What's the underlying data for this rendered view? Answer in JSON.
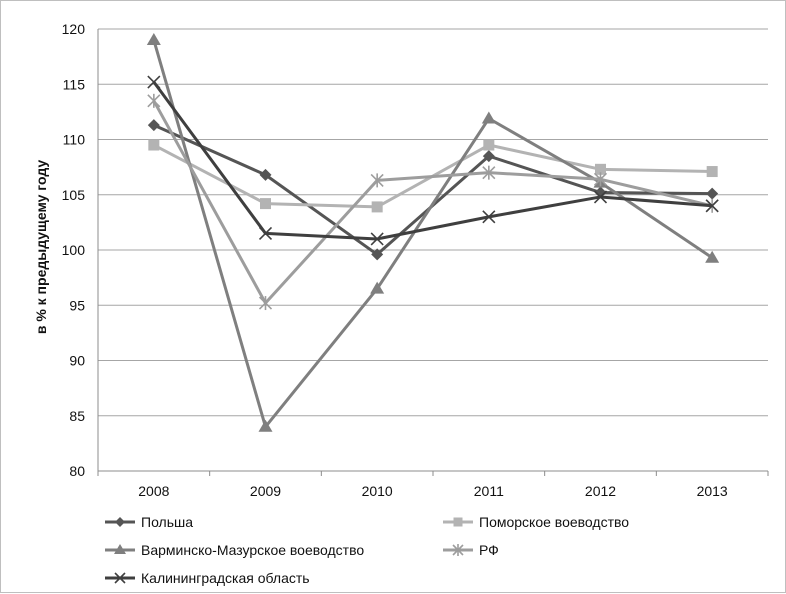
{
  "chart_data": {
    "type": "line",
    "title": "",
    "xlabel": "",
    "ylabel": "в % к предыдущему году",
    "categories": [
      "2008",
      "2009",
      "2010",
      "2011",
      "2012",
      "2013"
    ],
    "ylim": [
      80,
      120
    ],
    "yticks": [
      80,
      85,
      90,
      95,
      100,
      105,
      110,
      115,
      120
    ],
    "grid": true,
    "legend_position": "bottom",
    "series": [
      {
        "name": "Польша",
        "values": [
          111.3,
          106.8,
          99.6,
          108.5,
          105.2,
          105.1
        ],
        "color": "#555555",
        "marker": "diamond"
      },
      {
        "name": "Поморское воеводство",
        "values": [
          109.5,
          104.2,
          103.9,
          109.5,
          107.3,
          107.1
        ],
        "color": "#b3b3b3",
        "marker": "square"
      },
      {
        "name": "Варминско-Мазурское воеводство",
        "values": [
          119.0,
          84.0,
          96.5,
          111.9,
          106.1,
          99.3
        ],
        "color": "#7f7f7f",
        "marker": "triangle"
      },
      {
        "name": "РФ",
        "values": [
          113.5,
          95.2,
          106.3,
          107.0,
          106.4,
          104.0
        ],
        "color": "#9d9d9d",
        "marker": "star"
      },
      {
        "name": "Калининградская область",
        "values": [
          115.2,
          101.5,
          101.0,
          103.0,
          104.8,
          104.0
        ],
        "color": "#3f3f3f",
        "marker": "x"
      }
    ]
  }
}
